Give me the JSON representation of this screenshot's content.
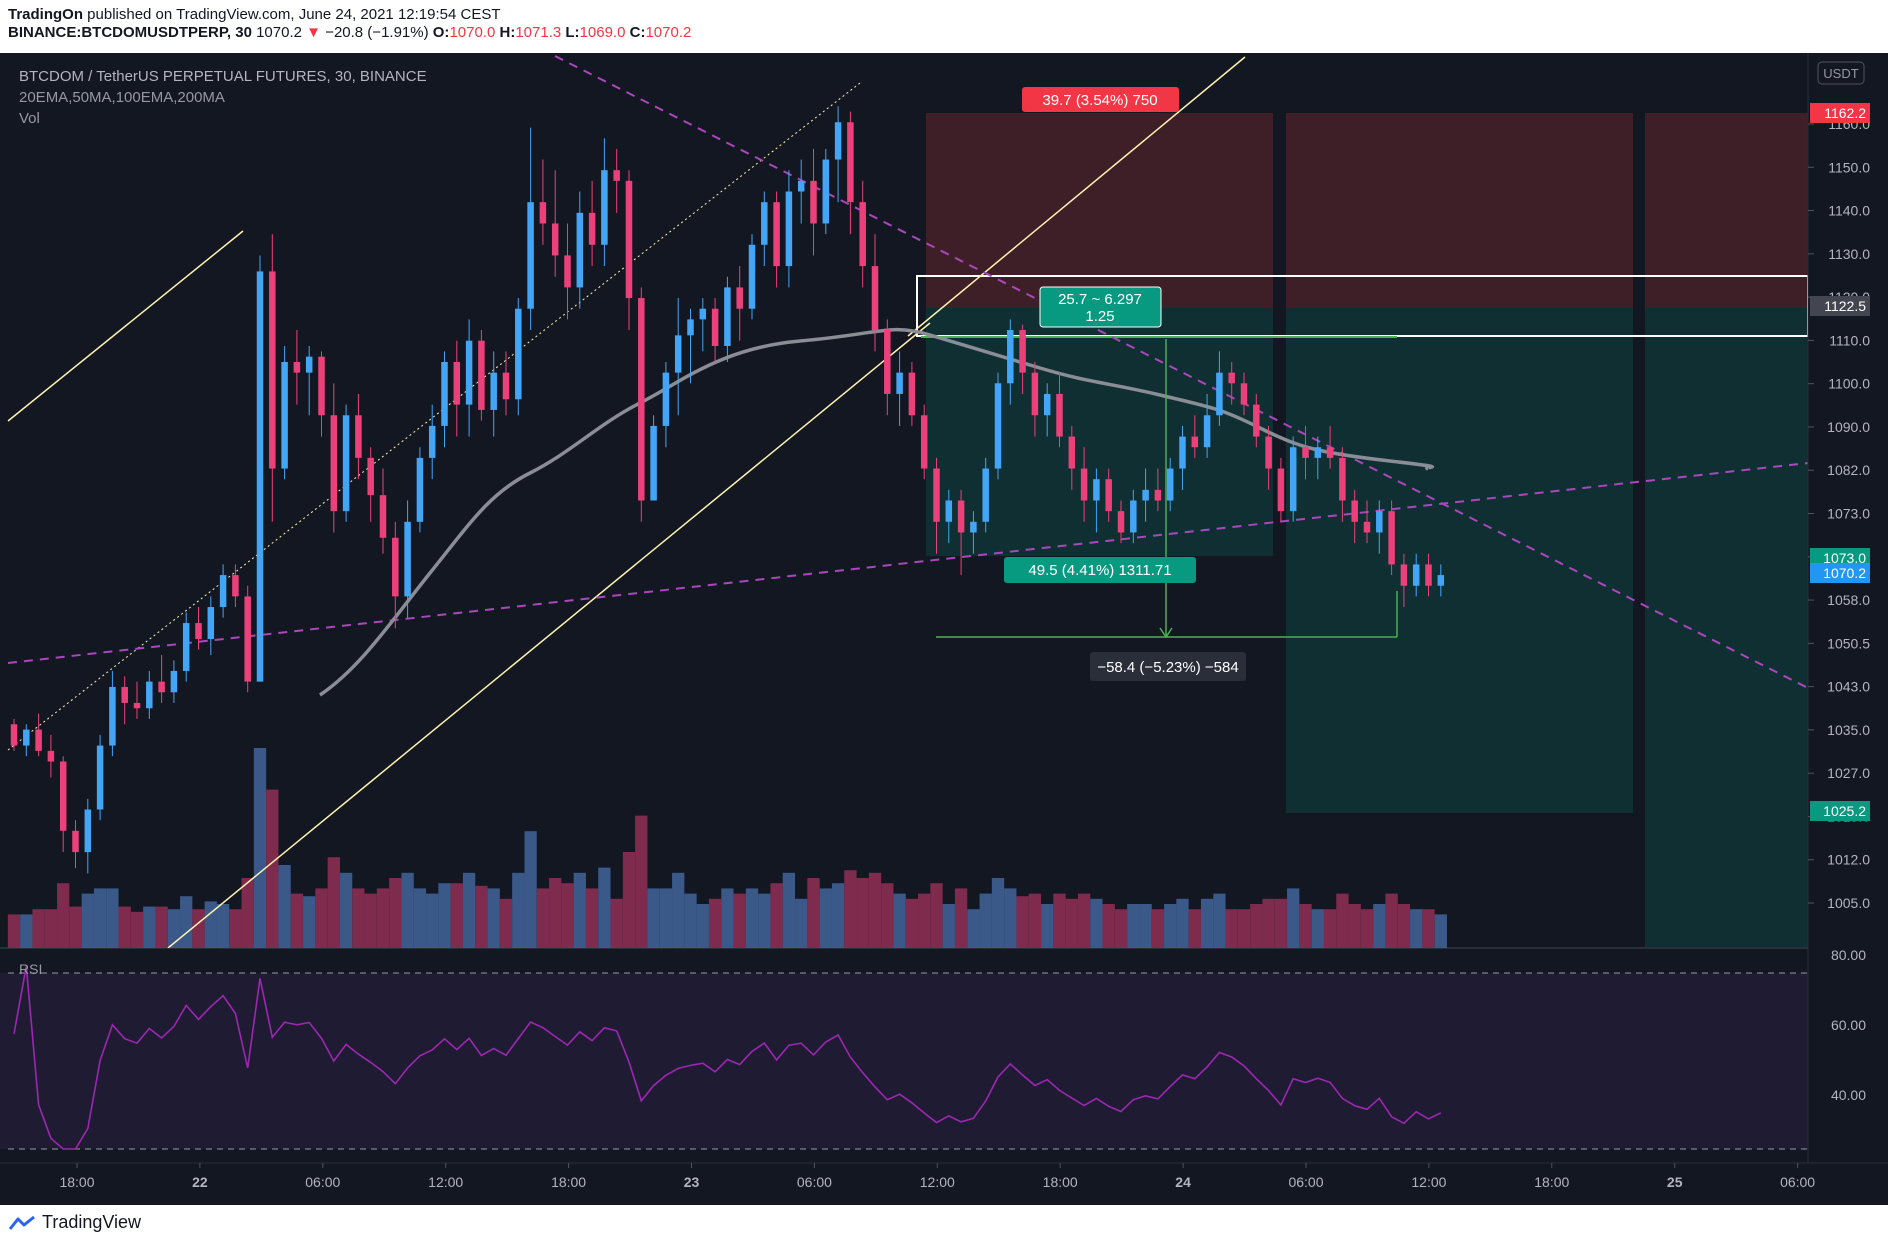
{
  "header": {
    "publisher": "TradingOn",
    "published_text": "published on TradingView.com, June 24, 2021 12:19:54 CEST",
    "symbol": "BINANCE:BTCDOMUSDTPERP, 30",
    "last": "1070.2",
    "change": "−20.8 (−1.91%)",
    "o_label": "O:",
    "o": "1070.0",
    "h_label": "H:",
    "h": "1071.3",
    "l_label": "L:",
    "l": "1069.0",
    "c_label": "C:",
    "c": "1070.2"
  },
  "legend": {
    "title": "BTCDOM / TetherUS PERPETUAL FUTURES, 30, BINANCE",
    "indicators": "20EMA,50MA,100EMA,200MA",
    "vol": "Vol",
    "rsi": "RSI"
  },
  "price_axis": {
    "currency": "USDT",
    "ticks": [
      "1160.0",
      "1150.0",
      "1140.0",
      "1130.0",
      "1120.0",
      "1110.0",
      "1100.0",
      "1090.0",
      "1082.0",
      "1073.0",
      "1066.0",
      "1058.0",
      "1050.5",
      "1043.0",
      "1035.0",
      "1027.0",
      "1019.0",
      "1012.0",
      "1005.0"
    ],
    "tags": [
      {
        "text": "1162.2",
        "color": "#f23645"
      },
      {
        "text": "1122.5",
        "color": "#434651"
      },
      {
        "text": "1073.0",
        "color": "#089981"
      },
      {
        "text": "1070.2",
        "color": "#2196f3"
      },
      {
        "text": "1025.2",
        "color": "#089981"
      }
    ]
  },
  "rsi_axis": {
    "ticks": [
      "80.00",
      "60.00",
      "40.00"
    ]
  },
  "time_axis": {
    "ticks": [
      "18:00",
      "22",
      "06:00",
      "12:00",
      "18:00",
      "23",
      "06:00",
      "12:00",
      "18:00",
      "24",
      "06:00",
      "12:00",
      "18:00",
      "25",
      "06:00"
    ]
  },
  "annotations": {
    "stop_label": "39.7 (3.54%) 750",
    "target_label": "49.5 (4.41%) 1311.71",
    "ratio_line1": "25.7 ~ 6.297",
    "ratio_line2": "1.25",
    "measure_label": "−58.4 (−5.23%) −584"
  },
  "colors": {
    "background": "#131722",
    "up": "#42a5f5",
    "down": "#ec407a",
    "ma": "#8a8d96",
    "trendline": "#ab47bc",
    "channel": "#fff3b0",
    "stop_zone": "#3e1f28",
    "target_zone": "#0f2f33"
  },
  "footer": {
    "brand": "TradingView"
  },
  "chart_data": [
    {
      "type": "candlestick",
      "title": "BTCDOM / TetherUS PERPETUAL FUTURES, 30, BINANCE",
      "interval": "30m",
      "ylim": [
        1000,
        1168
      ],
      "x_range": [
        "Jun 21 14:00",
        "Jun 25 06:00"
      ],
      "series": [
        {
          "name": "Price",
          "values_ohlc": [
            [
              1042,
              1043,
              1037,
              1038
            ],
            [
              1038,
              1042,
              1036,
              1041
            ],
            [
              1041,
              1044,
              1036,
              1037
            ],
            [
              1037,
              1040,
              1032,
              1035
            ],
            [
              1035,
              1036,
              1018,
              1022
            ],
            [
              1022,
              1024,
              1015,
              1018
            ],
            [
              1018,
              1028,
              1014,
              1026
            ],
            [
              1026,
              1040,
              1024,
              1038
            ],
            [
              1038,
              1052,
              1036,
              1049
            ],
            [
              1049,
              1051,
              1042,
              1046
            ],
            [
              1046,
              1050,
              1043,
              1045
            ],
            [
              1045,
              1052,
              1043,
              1050
            ],
            [
              1050,
              1055,
              1046,
              1048
            ],
            [
              1048,
              1054,
              1046,
              1052
            ],
            [
              1052,
              1063,
              1050,
              1061
            ],
            [
              1061,
              1064,
              1056,
              1058
            ],
            [
              1058,
              1066,
              1055,
              1064
            ],
            [
              1064,
              1072,
              1062,
              1070
            ],
            [
              1070,
              1072,
              1064,
              1066
            ],
            [
              1066,
              1068,
              1048,
              1050
            ],
            [
              1050,
              1130,
              1050,
              1127
            ],
            [
              1127,
              1134,
              1080,
              1090
            ],
            [
              1090,
              1113,
              1088,
              1110
            ],
            [
              1110,
              1116,
              1102,
              1108
            ],
            [
              1108,
              1113,
              1100,
              1111
            ],
            [
              1111,
              1112,
              1096,
              1100
            ],
            [
              1100,
              1106,
              1078,
              1082
            ],
            [
              1082,
              1102,
              1080,
              1100
            ],
            [
              1100,
              1104,
              1088,
              1092
            ],
            [
              1092,
              1094,
              1080,
              1085
            ],
            [
              1085,
              1090,
              1074,
              1077
            ],
            [
              1077,
              1080,
              1060,
              1066
            ],
            [
              1066,
              1084,
              1062,
              1080
            ],
            [
              1080,
              1094,
              1078,
              1092
            ],
            [
              1092,
              1102,
              1088,
              1098
            ],
            [
              1098,
              1112,
              1094,
              1110
            ],
            [
              1110,
              1114,
              1096,
              1102
            ],
            [
              1102,
              1118,
              1096,
              1114
            ],
            [
              1114,
              1116,
              1099,
              1101
            ],
            [
              1101,
              1112,
              1096,
              1108
            ],
            [
              1108,
              1112,
              1100,
              1103
            ],
            [
              1103,
              1122,
              1100,
              1120
            ],
            [
              1120,
              1154,
              1116,
              1140
            ],
            [
              1140,
              1148,
              1132,
              1136
            ],
            [
              1136,
              1146,
              1126,
              1130
            ],
            [
              1130,
              1136,
              1118,
              1124
            ],
            [
              1124,
              1142,
              1120,
              1138
            ],
            [
              1138,
              1144,
              1128,
              1132
            ],
            [
              1132,
              1152,
              1128,
              1146
            ],
            [
              1146,
              1150,
              1138,
              1144
            ],
            [
              1144,
              1146,
              1116,
              1122
            ],
            [
              1122,
              1124,
              1080,
              1084
            ],
            [
              1084,
              1100,
              1084,
              1098
            ],
            [
              1098,
              1110,
              1094,
              1108
            ],
            [
              1108,
              1122,
              1100,
              1115
            ],
            [
              1115,
              1120,
              1106,
              1118
            ],
            [
              1118,
              1122,
              1112,
              1120
            ],
            [
              1120,
              1122,
              1110,
              1113
            ],
            [
              1113,
              1126,
              1110,
              1124
            ],
            [
              1124,
              1128,
              1114,
              1120
            ],
            [
              1120,
              1134,
              1118,
              1132
            ],
            [
              1132,
              1142,
              1128,
              1140
            ],
            [
              1140,
              1142,
              1124,
              1128
            ],
            [
              1128,
              1146,
              1124,
              1142
            ],
            [
              1142,
              1148,
              1136,
              1144
            ],
            [
              1144,
              1150,
              1130,
              1136
            ],
            [
              1136,
              1150,
              1134,
              1148
            ],
            [
              1148,
              1158,
              1140,
              1155
            ],
            [
              1155,
              1157,
              1134,
              1140
            ],
            [
              1140,
              1144,
              1124,
              1128
            ],
            [
              1128,
              1134,
              1112,
              1116
            ],
            [
              1116,
              1118,
              1100,
              1104
            ],
            [
              1104,
              1112,
              1098,
              1108
            ],
            [
              1108,
              1110,
              1098,
              1100
            ],
            [
              1100,
              1102,
              1088,
              1090
            ],
            [
              1090,
              1092,
              1074,
              1080
            ],
            [
              1080,
              1086,
              1076,
              1084
            ],
            [
              1084,
              1086,
              1070,
              1078
            ],
            [
              1078,
              1082,
              1074,
              1080
            ],
            [
              1080,
              1092,
              1078,
              1090
            ],
            [
              1090,
              1108,
              1088,
              1106
            ],
            [
              1106,
              1118,
              1102,
              1116
            ],
            [
              1116,
              1117,
              1104,
              1108
            ],
            [
              1108,
              1110,
              1096,
              1100
            ],
            [
              1100,
              1106,
              1096,
              1104
            ],
            [
              1104,
              1108,
              1094,
              1096
            ],
            [
              1096,
              1098,
              1086,
              1090
            ],
            [
              1090,
              1094,
              1080,
              1084
            ],
            [
              1084,
              1090,
              1078,
              1088
            ],
            [
              1088,
              1090,
              1080,
              1082
            ],
            [
              1082,
              1084,
              1076,
              1078
            ],
            [
              1078,
              1086,
              1076,
              1084
            ],
            [
              1084,
              1090,
              1080,
              1086
            ],
            [
              1086,
              1090,
              1082,
              1084
            ],
            [
              1084,
              1092,
              1082,
              1090
            ],
            [
              1090,
              1098,
              1086,
              1096
            ],
            [
              1096,
              1100,
              1092,
              1094
            ],
            [
              1094,
              1104,
              1092,
              1100
            ],
            [
              1100,
              1112,
              1098,
              1108
            ],
            [
              1108,
              1110,
              1102,
              1106
            ],
            [
              1106,
              1108,
              1100,
              1102
            ],
            [
              1102,
              1104,
              1094,
              1096
            ],
            [
              1096,
              1098,
              1086,
              1090
            ],
            [
              1090,
              1092,
              1080,
              1082
            ],
            [
              1082,
              1096,
              1080,
              1094
            ],
            [
              1094,
              1098,
              1088,
              1092
            ],
            [
              1092,
              1096,
              1088,
              1094
            ],
            [
              1094,
              1098,
              1090,
              1092
            ],
            [
              1092,
              1094,
              1080,
              1084
            ],
            [
              1084,
              1086,
              1076,
              1080
            ],
            [
              1080,
              1084,
              1076,
              1078
            ],
            [
              1078,
              1084,
              1074,
              1082
            ],
            [
              1082,
              1084,
              1070,
              1072
            ],
            [
              1072,
              1074,
              1064,
              1068
            ],
            [
              1068,
              1074,
              1066,
              1072
            ],
            [
              1072,
              1074,
              1066,
              1068
            ],
            [
              1068,
              1072,
              1066,
              1070
            ]
          ]
        }
      ]
    }
  ]
}
